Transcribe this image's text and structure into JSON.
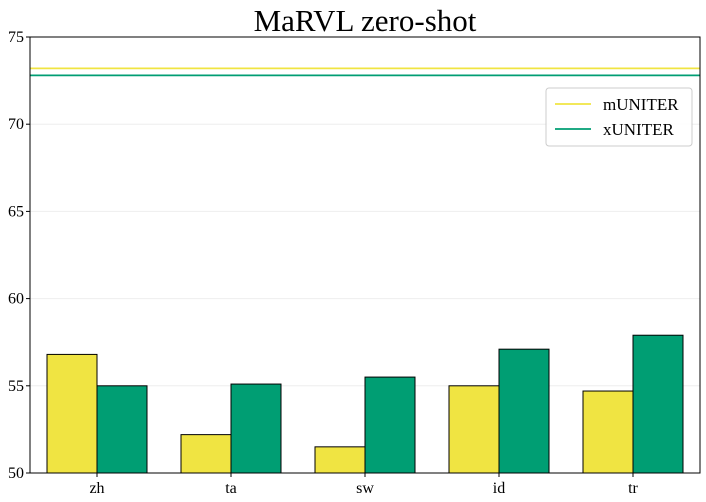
{
  "colors": {
    "mUNITER": "#f0e442",
    "xUNITER": "#009e73",
    "bar_edge": "#000000",
    "grid": "#eeeeee"
  },
  "chart_data": {
    "type": "bar",
    "title": "MaRVL zero-shot",
    "xlabel": "",
    "ylabel": "",
    "ylim": [
      50,
      75
    ],
    "yticks": [
      50,
      55,
      60,
      65,
      70,
      75
    ],
    "grid": "y",
    "legend_position": "top-right",
    "categories": [
      "zh",
      "ta",
      "sw",
      "id",
      "tr"
    ],
    "series": [
      {
        "name": "mUNITER",
        "color": "#f0e442",
        "values": [
          56.8,
          52.2,
          51.5,
          55.0,
          54.7
        ],
        "reference_line": 73.2
      },
      {
        "name": "xUNITER",
        "color": "#009e73",
        "values": [
          55.0,
          55.1,
          55.5,
          57.1,
          57.9
        ],
        "reference_line": 72.8
      }
    ]
  }
}
